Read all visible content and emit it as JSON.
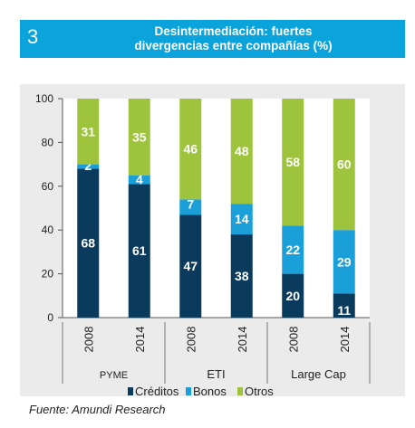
{
  "header": {
    "number": "3",
    "title_line1": "Desintermediación: fuertes",
    "title_line2": "divergencias entre compañías (%)"
  },
  "source": "Fuente: Amundi Research",
  "colors": {
    "header": "#0aa3dc",
    "creditos": "#0b3b5c",
    "bonos": "#1b9fd9",
    "otros": "#9dc43c"
  },
  "chart_data": {
    "type": "bar",
    "stacked": true,
    "categories": [
      "2008",
      "2014",
      "2008",
      "2014",
      "2008",
      "2014"
    ],
    "groups": [
      "PYME",
      "ETI",
      "Large Cap"
    ],
    "y_ticks": [
      "0",
      "20",
      "40",
      "60",
      "80",
      "100"
    ],
    "ylim": [
      0,
      100
    ],
    "series": [
      {
        "name": "Créditos",
        "values": [
          68,
          61,
          47,
          38,
          20,
          11
        ],
        "labels": [
          "68",
          "61",
          "47",
          "38",
          "20",
          "11"
        ]
      },
      {
        "name": "Bonos",
        "values": [
          2,
          4,
          7,
          14,
          22,
          29
        ],
        "labels": [
          "2",
          "4",
          "7",
          "14",
          "22",
          "29"
        ]
      },
      {
        "name": "Otros",
        "values": [
          31,
          35,
          46,
          48,
          58,
          60
        ],
        "labels": [
          "31",
          "35",
          "46",
          "48",
          "58",
          "60"
        ]
      }
    ],
    "legend_position": "bottom"
  }
}
